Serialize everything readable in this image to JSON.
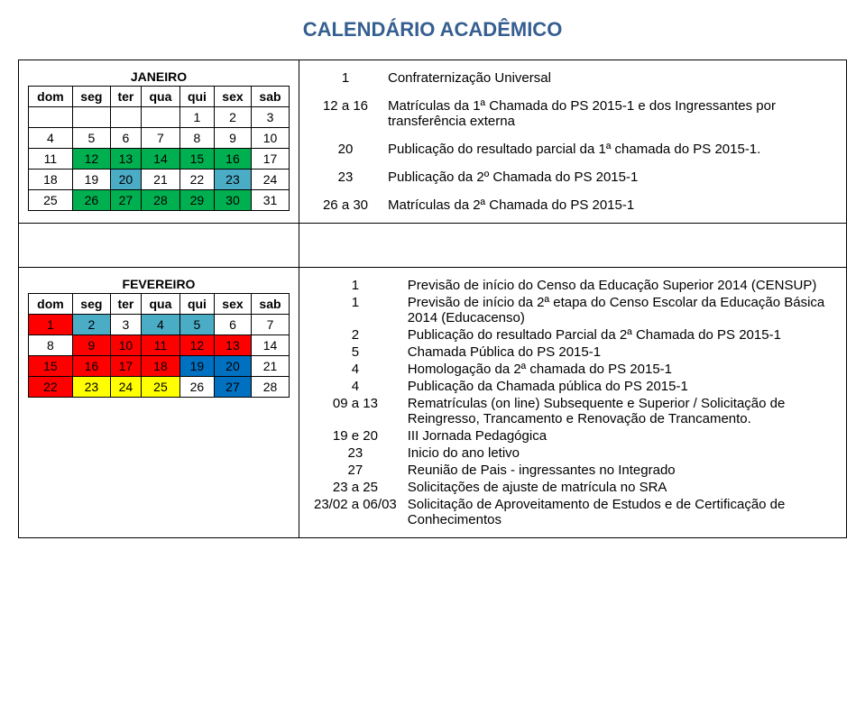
{
  "title": "CALENDÁRIO ACADÊMICO",
  "colors": {
    "title": "#365f91",
    "green": "#00b050",
    "lightblue": "#4bacc6",
    "red": "#ff0000",
    "blue": "#0070c0",
    "yellow": "#ffff00",
    "none": ""
  },
  "dayHeaders": [
    "dom",
    "seg",
    "ter",
    "qua",
    "qui",
    "sex",
    "sab"
  ],
  "jan": {
    "title": "JANEIRO",
    "rows": [
      [
        {
          "v": "",
          "c": "none"
        },
        {
          "v": "",
          "c": "none"
        },
        {
          "v": "",
          "c": "none"
        },
        {
          "v": "",
          "c": "none"
        },
        {
          "v": "1",
          "c": "none"
        },
        {
          "v": "2",
          "c": "none"
        },
        {
          "v": "3",
          "c": "none"
        }
      ],
      [
        {
          "v": "4",
          "c": "none"
        },
        {
          "v": "5",
          "c": "none"
        },
        {
          "v": "6",
          "c": "none"
        },
        {
          "v": "7",
          "c": "none"
        },
        {
          "v": "8",
          "c": "none"
        },
        {
          "v": "9",
          "c": "none"
        },
        {
          "v": "10",
          "c": "none"
        }
      ],
      [
        {
          "v": "11",
          "c": "none"
        },
        {
          "v": "12",
          "c": "green"
        },
        {
          "v": "13",
          "c": "green"
        },
        {
          "v": "14",
          "c": "green"
        },
        {
          "v": "15",
          "c": "green"
        },
        {
          "v": "16",
          "c": "green"
        },
        {
          "v": "17",
          "c": "none"
        }
      ],
      [
        {
          "v": "18",
          "c": "none"
        },
        {
          "v": "19",
          "c": "none"
        },
        {
          "v": "20",
          "c": "lightblue"
        },
        {
          "v": "21",
          "c": "none"
        },
        {
          "v": "22",
          "c": "none"
        },
        {
          "v": "23",
          "c": "lightblue"
        },
        {
          "v": "24",
          "c": "none"
        }
      ],
      [
        {
          "v": "25",
          "c": "none"
        },
        {
          "v": "26",
          "c": "green"
        },
        {
          "v": "27",
          "c": "green"
        },
        {
          "v": "28",
          "c": "green"
        },
        {
          "v": "29",
          "c": "green"
        },
        {
          "v": "30",
          "c": "green"
        },
        {
          "v": "31",
          "c": "none"
        }
      ]
    ]
  },
  "feb": {
    "title": "FEVEREIRO",
    "rows": [
      [
        {
          "v": "1",
          "c": "red"
        },
        {
          "v": "2",
          "c": "lightblue"
        },
        {
          "v": "3",
          "c": "none"
        },
        {
          "v": "4",
          "c": "lightblue"
        },
        {
          "v": "5",
          "c": "lightblue"
        },
        {
          "v": "6",
          "c": "none"
        },
        {
          "v": "7",
          "c": "none"
        }
      ],
      [
        {
          "v": "8",
          "c": "none"
        },
        {
          "v": "9",
          "c": "red"
        },
        {
          "v": "10",
          "c": "red"
        },
        {
          "v": "11",
          "c": "red"
        },
        {
          "v": "12",
          "c": "red"
        },
        {
          "v": "13",
          "c": "red"
        },
        {
          "v": "14",
          "c": "none"
        }
      ],
      [
        {
          "v": "15",
          "c": "red"
        },
        {
          "v": "16",
          "c": "red"
        },
        {
          "v": "17",
          "c": "red"
        },
        {
          "v": "18",
          "c": "red"
        },
        {
          "v": "19",
          "c": "blue"
        },
        {
          "v": "20",
          "c": "blue"
        },
        {
          "v": "21",
          "c": "none"
        }
      ],
      [
        {
          "v": "22",
          "c": "red"
        },
        {
          "v": "23",
          "c": "yellow"
        },
        {
          "v": "24",
          "c": "yellow"
        },
        {
          "v": "25",
          "c": "yellow"
        },
        {
          "v": "26",
          "c": "none"
        },
        {
          "v": "27",
          "c": "blue"
        },
        {
          "v": "28",
          "c": "none"
        }
      ]
    ]
  },
  "janEvents": [
    {
      "d": "1",
      "t": "Confraternização Universal"
    },
    {
      "d": "12 a 16",
      "t": "Matrículas da 1ª Chamada do PS 2015-1 e dos Ingressantes por transferência externa"
    },
    {
      "d": "20",
      "t": "Publicação do resultado parcial da 1ª chamada do PS 2015-1."
    },
    {
      "d": "23",
      "t": "Publicação da 2º Chamada do PS 2015-1"
    },
    {
      "d": "26 a 30",
      "t": "Matrículas da 2ª Chamada do PS 2015-1"
    }
  ],
  "febEvents": [
    {
      "d": "1",
      "t": "Previsão de início do Censo da Educação Superior 2014 (CENSUP)"
    },
    {
      "d": "1",
      "t": "Previsão de início da 2ª etapa do Censo Escolar da Educação Básica 2014 (Educacenso)"
    },
    {
      "d": "2",
      "t": "Publicação do resultado Parcial da 2ª Chamada do PS 2015-1"
    },
    {
      "d": "5",
      "t": "Chamada Pública do PS 2015-1"
    },
    {
      "d": "4",
      "t": "Homologação da 2ª chamada do PS 2015-1"
    },
    {
      "d": "4",
      "t": "Publicação da Chamada pública do PS 2015-1"
    },
    {
      "d": "09 a 13",
      "t": "Rematrículas (on line) Subsequente e Superior / Solicitação de Reingresso, Trancamento e Renovação de Trancamento."
    },
    {
      "d": "19 e 20",
      "t": "III Jornada Pedagógica"
    },
    {
      "d": "23",
      "t": "Inicio do ano letivo"
    },
    {
      "d": "27",
      "t": "Reunião de Pais - ingressantes no Integrado"
    },
    {
      "d": "23 a 25",
      "t": "Solicitações de ajuste de matrícula no SRA"
    },
    {
      "d": "23/02 a 06/03",
      "t": "Solicitação de Aproveitamento de Estudos e de Certificação de Conhecimentos"
    }
  ]
}
